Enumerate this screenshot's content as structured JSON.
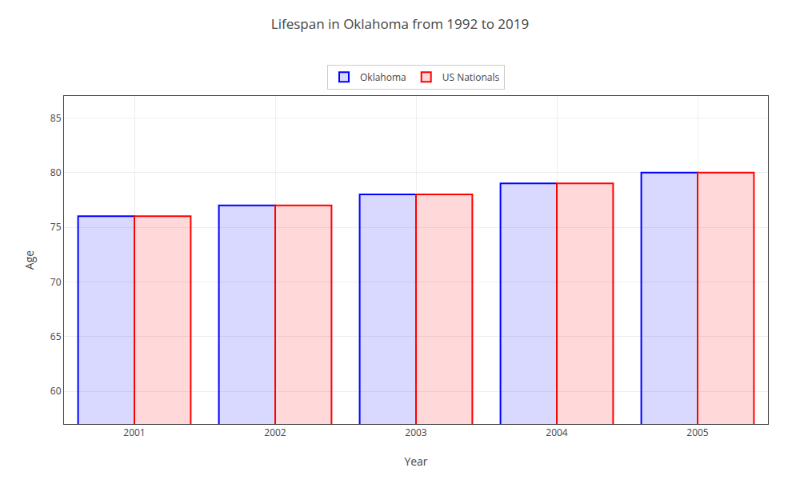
{
  "chart_data": {
    "type": "bar",
    "title": "Lifespan in Oklahoma from 1992 to 2019",
    "x_label": "Year",
    "y_label": "Age",
    "categories": [
      "2001",
      "2002",
      "2003",
      "2004",
      "2005"
    ],
    "series": [
      {
        "name": "Oklahoma",
        "color": "#0000ff",
        "values": [
          76,
          77,
          78,
          79,
          80
        ]
      },
      {
        "name": "US Nationals",
        "color": "#ff0000",
        "values": [
          76,
          77,
          78,
          79,
          80
        ]
      }
    ],
    "ylim": [
      57,
      87
    ],
    "yticks": [
      60,
      65,
      70,
      75,
      80,
      85
    ],
    "grid": true,
    "legend": "top"
  }
}
